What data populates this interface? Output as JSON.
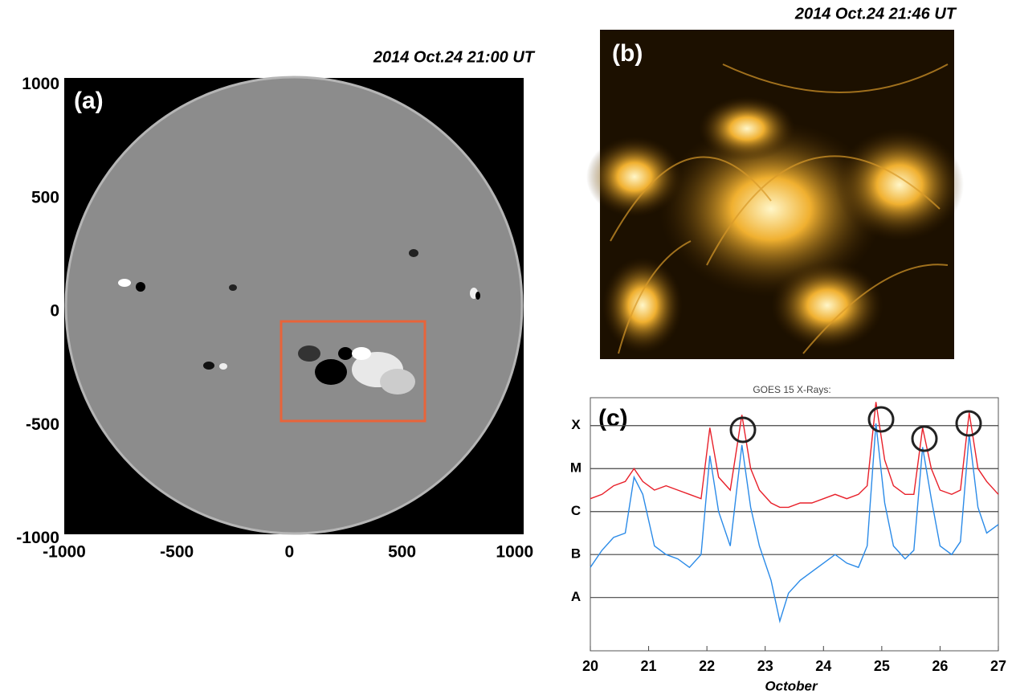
{
  "panel_a": {
    "label": "(a)",
    "title": "2014 Oct.24 21:00 UT",
    "xlim": [
      -1000,
      1040
    ],
    "xticks": [
      -1000,
      -500,
      0,
      500,
      1000
    ],
    "ylim": [
      -980,
      1030
    ],
    "yticks": [
      -1000,
      -500,
      0,
      500,
      1000
    ]
  },
  "panel_b": {
    "label": "(b)",
    "title": "2014 Oct.24 21:46 UT"
  },
  "chart_data": {
    "type": "line",
    "title": "GOES 15 X-Rays:",
    "label": "(c)",
    "xlabel": "October",
    "x": [
      20.0,
      20.2,
      20.4,
      20.6,
      20.75,
      20.9,
      21.1,
      21.3,
      21.5,
      21.7,
      21.9,
      22.05,
      22.2,
      22.4,
      22.6,
      22.75,
      22.9,
      23.1,
      23.25,
      23.4,
      23.6,
      23.8,
      24.0,
      24.2,
      24.4,
      24.6,
      24.75,
      24.9,
      25.05,
      25.2,
      25.4,
      25.55,
      25.7,
      25.85,
      26.0,
      26.2,
      26.35,
      26.5,
      26.65,
      26.8,
      27.0
    ],
    "series": [
      {
        "color": "#e8202a",
        "values": [
          -5.7,
          -5.6,
          -5.4,
          -5.3,
          -5.0,
          -5.3,
          -5.5,
          -5.4,
          -5.5,
          -5.6,
          -5.7,
          -4.05,
          -5.2,
          -5.5,
          -3.75,
          -5.0,
          -5.5,
          -5.8,
          -5.9,
          -5.9,
          -5.8,
          -5.8,
          -5.7,
          -5.6,
          -5.7,
          -5.6,
          -5.4,
          -3.45,
          -4.8,
          -5.4,
          -5.6,
          -5.6,
          -4.05,
          -5.0,
          -5.5,
          -5.6,
          -5.5,
          -3.7,
          -5.0,
          -5.3,
          -5.6
        ]
      },
      {
        "color": "#2b8be8",
        "values": [
          -7.3,
          -6.9,
          -6.6,
          -6.5,
          -5.2,
          -5.6,
          -6.8,
          -7.0,
          -7.1,
          -7.3,
          -7.0,
          -4.7,
          -6.0,
          -6.8,
          -4.45,
          -5.9,
          -6.8,
          -7.6,
          -8.55,
          -7.9,
          -7.6,
          -7.4,
          -7.2,
          -7.0,
          -7.2,
          -7.3,
          -6.8,
          -3.95,
          -5.8,
          -6.8,
          -7.1,
          -6.9,
          -4.5,
          -5.7,
          -6.8,
          -7.0,
          -6.7,
          -4.2,
          -5.9,
          -6.5,
          -6.3
        ]
      }
    ],
    "xlim": [
      20,
      27
    ],
    "xticks": [
      20,
      21,
      22,
      23,
      24,
      25,
      26,
      27
    ],
    "ylim": [
      -9.24,
      -3.35
    ],
    "yticks": [
      {
        "value": -8,
        "label": "A"
      },
      {
        "value": -7,
        "label": "B"
      },
      {
        "value": -6,
        "label": "C"
      },
      {
        "value": -5,
        "label": "M"
      },
      {
        "value": -4,
        "label": "X"
      }
    ],
    "grid": true
  }
}
